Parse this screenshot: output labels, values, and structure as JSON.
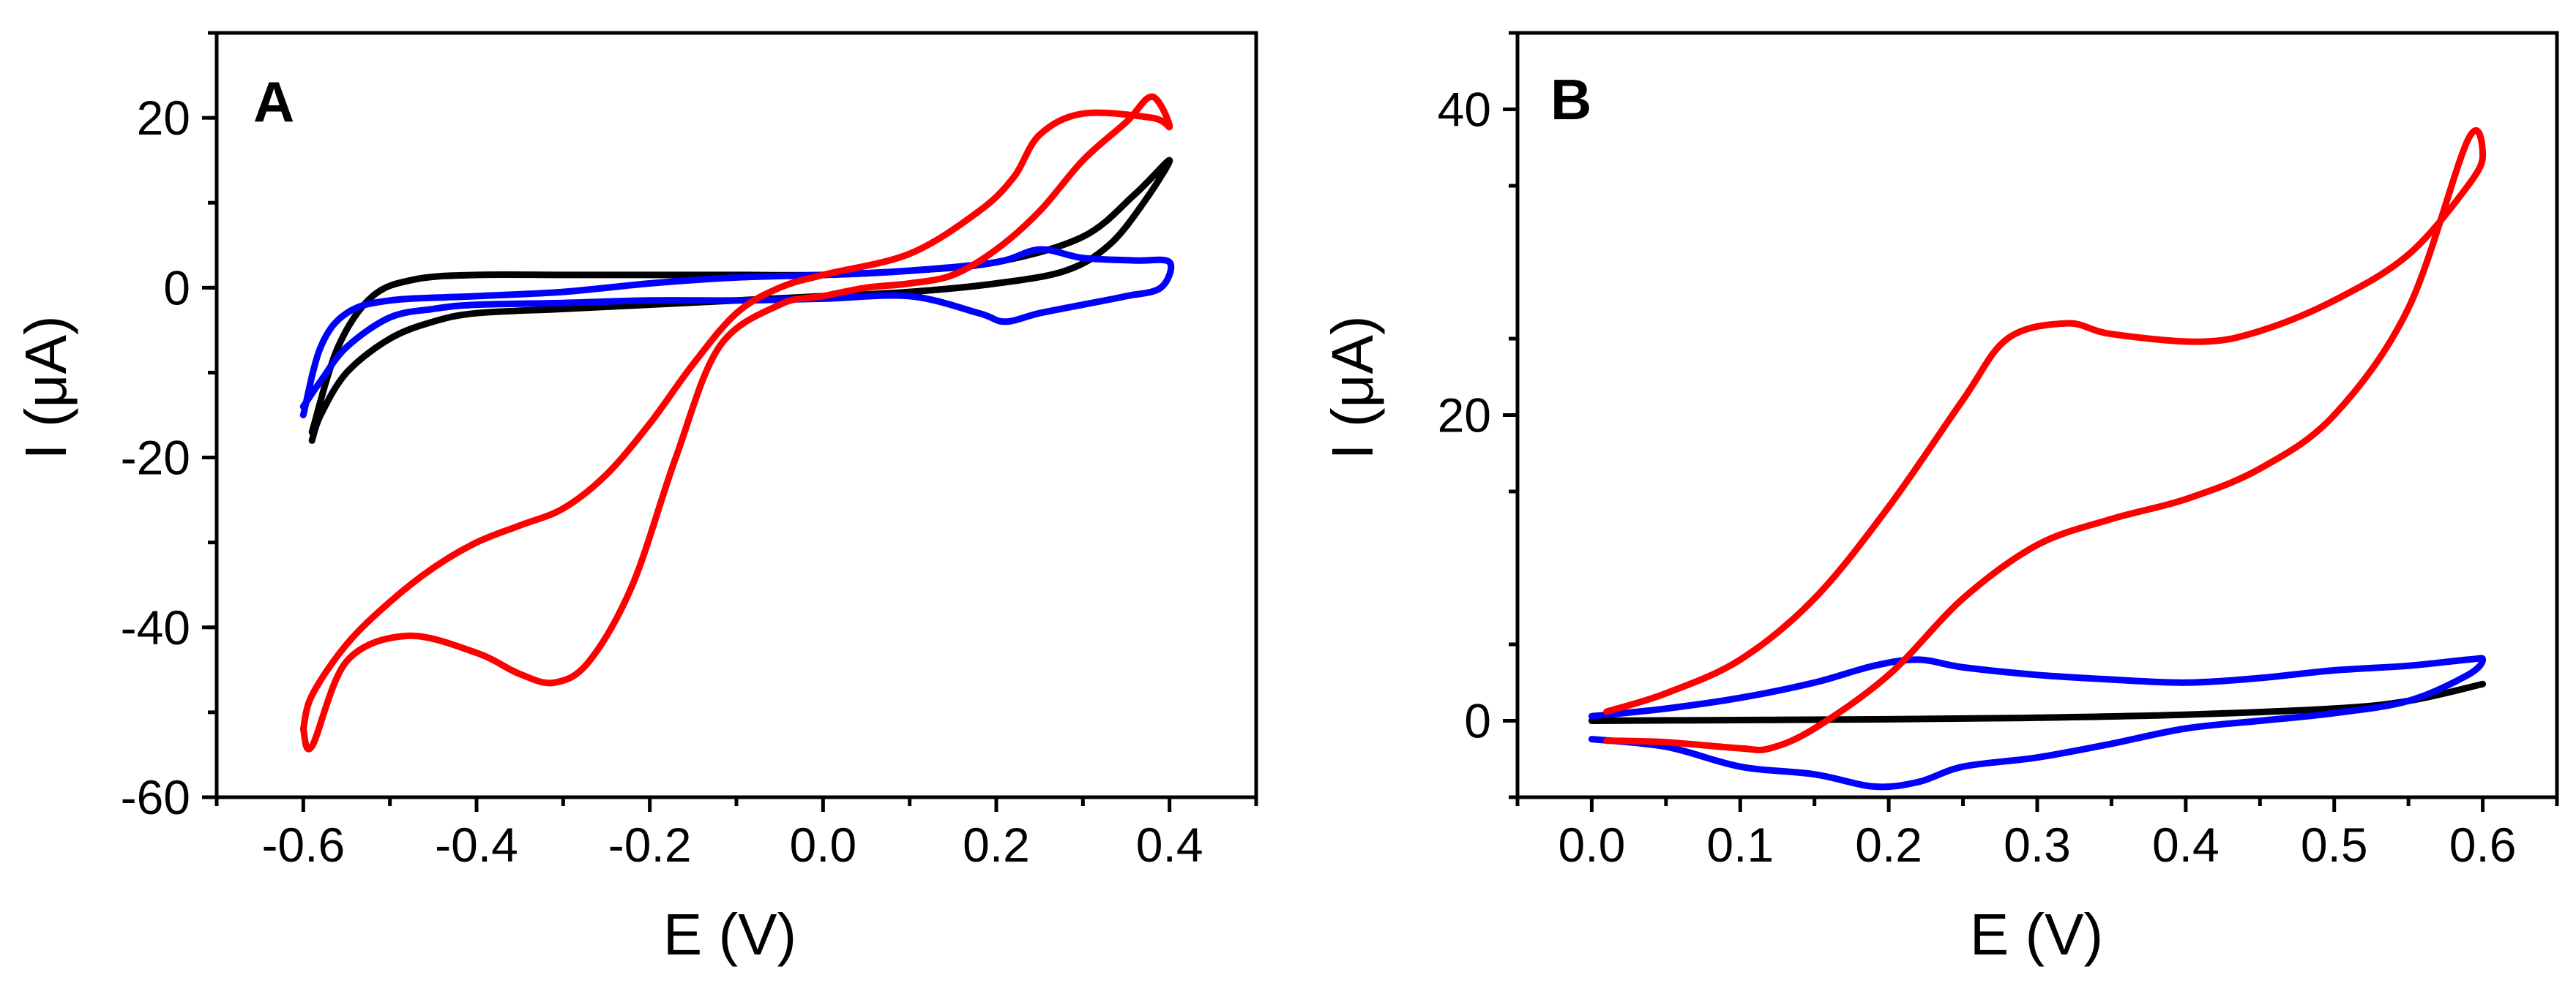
{
  "chart_data": [
    {
      "type": "line",
      "panel": "A",
      "xlabel": "E (V)",
      "ylabel": "I (μA)",
      "xlim": [
        -0.7,
        0.5
      ],
      "ylim": [
        -60,
        30
      ],
      "xticks": [
        -0.6,
        -0.4,
        -0.2,
        0.0,
        0.2,
        0.4
      ],
      "xtick_labels": [
        "-0.6",
        "-0.4",
        "-0.2",
        "0.0",
        "0.2",
        "0.4"
      ],
      "yticks": [
        -60,
        -40,
        -20,
        0,
        20
      ],
      "ytick_labels": [
        "-60",
        "-40",
        "-20",
        "0",
        "20"
      ],
      "series": [
        {
          "name": "black",
          "color": "#000000",
          "x": [
            -0.59,
            -0.58,
            -0.55,
            -0.5,
            -0.45,
            -0.4,
            -0.3,
            -0.2,
            -0.1,
            0.0,
            0.1,
            0.2,
            0.28,
            0.33,
            0.37,
            0.4,
            0.36,
            0.3,
            0.2,
            0.1,
            0.0,
            -0.1,
            -0.2,
            -0.3,
            -0.4,
            -0.47,
            -0.52,
            -0.56,
            -0.59
          ],
          "y": [
            -18,
            -15,
            -10,
            -6,
            -4,
            -3,
            -2.5,
            -2,
            -1.5,
            -1,
            -0.5,
            0.5,
            2,
            5,
            10,
            15,
            11,
            6,
            3,
            2,
            1.5,
            1.5,
            1.5,
            1.5,
            1.5,
            1,
            -1,
            -7,
            -17
          ]
        },
        {
          "name": "blue",
          "color": "#0000ff",
          "x": [
            -0.6,
            -0.58,
            -0.55,
            -0.5,
            -0.45,
            -0.4,
            -0.3,
            -0.2,
            -0.1,
            0.0,
            0.1,
            0.18,
            0.21,
            0.25,
            0.3,
            0.35,
            0.39,
            0.4,
            0.36,
            0.3,
            0.25,
            0.2,
            0.1,
            0.0,
            -0.1,
            -0.2,
            -0.3,
            -0.4,
            -0.5,
            -0.55,
            -0.58,
            -0.6
          ],
          "y": [
            -14,
            -11,
            -7,
            -3.5,
            -2.5,
            -2,
            -1.8,
            -1.5,
            -1.5,
            -1.3,
            -1,
            -3,
            -4,
            -3,
            -2,
            -1,
            0,
            3,
            3.2,
            3.5,
            4.5,
            3,
            2,
            1.5,
            1.2,
            0.5,
            -0.5,
            -1,
            -1.5,
            -3,
            -7,
            -15
          ]
        },
        {
          "name": "red",
          "color": "#ff0000",
          "x": [
            -0.6,
            -0.59,
            -0.55,
            -0.48,
            -0.4,
            -0.35,
            -0.31,
            -0.27,
            -0.22,
            -0.17,
            -0.12,
            -0.05,
            0.0,
            0.05,
            0.1,
            0.15,
            0.2,
            0.25,
            0.3,
            0.35,
            0.38,
            0.4,
            0.38,
            0.3,
            0.25,
            0.22,
            0.18,
            0.1,
            0.0,
            -0.05,
            -0.1,
            -0.15,
            -0.2,
            -0.25,
            -0.3,
            -0.35,
            -0.4,
            -0.45,
            -0.5,
            -0.55,
            -0.59,
            -0.6
          ],
          "y": [
            -52,
            -54,
            -44,
            -41,
            -43,
            -45.5,
            -46.5,
            -44,
            -35,
            -20,
            -7,
            -2,
            -1,
            0,
            0.5,
            1.5,
            4.5,
            9,
            15,
            19.5,
            22.5,
            19,
            20,
            20.5,
            18,
            13,
            9,
            4,
            1.5,
            0,
            -3,
            -9,
            -16,
            -22,
            -26,
            -28,
            -30,
            -33,
            -37,
            -42,
            -48,
            -52
          ]
        }
      ]
    },
    {
      "type": "line",
      "panel": "B",
      "xlabel": "E (V)",
      "ylabel": "I (μA)",
      "xlim": [
        -0.05,
        0.65
      ],
      "ylim": [
        -5,
        45
      ],
      "xticks": [
        0.0,
        0.1,
        0.2,
        0.3,
        0.4,
        0.5,
        0.6
      ],
      "xtick_labels": [
        "0.0",
        "0.1",
        "0.2",
        "0.3",
        "0.4",
        "0.5",
        "0.6"
      ],
      "yticks": [
        0,
        20,
        40
      ],
      "ytick_labels": [
        "0",
        "20",
        "40"
      ],
      "series": [
        {
          "name": "black",
          "color": "#000000",
          "x": [
            0.0,
            0.1,
            0.2,
            0.3,
            0.4,
            0.5,
            0.55,
            0.6
          ],
          "y": [
            0,
            0.05,
            0.1,
            0.2,
            0.4,
            0.8,
            1.3,
            2.4
          ]
        },
        {
          "name": "blue",
          "color": "#0000ff",
          "x": [
            0.0,
            0.05,
            0.1,
            0.15,
            0.19,
            0.22,
            0.25,
            0.3,
            0.35,
            0.4,
            0.45,
            0.5,
            0.55,
            0.59,
            0.6,
            0.59,
            0.55,
            0.5,
            0.45,
            0.4,
            0.35,
            0.3,
            0.25,
            0.22,
            0.19,
            0.15,
            0.1,
            0.05,
            0.0
          ],
          "y": [
            -1.2,
            -1.7,
            -3,
            -3.5,
            -4.3,
            -4,
            -3,
            -2.4,
            -1.5,
            -0.5,
            0,
            0.5,
            1.3,
            3,
            4,
            4,
            3.6,
            3.3,
            2.8,
            2.5,
            2.7,
            3,
            3.5,
            4,
            3.6,
            2.5,
            1.5,
            0.8,
            0.3
          ]
        },
        {
          "name": "red",
          "color": "#ff0000",
          "x": [
            0.01,
            0.05,
            0.1,
            0.12,
            0.15,
            0.2,
            0.25,
            0.3,
            0.35,
            0.4,
            0.45,
            0.5,
            0.55,
            0.59,
            0.6,
            0.59,
            0.55,
            0.5,
            0.45,
            0.41,
            0.35,
            0.32,
            0.28,
            0.25,
            0.2,
            0.15,
            0.1,
            0.05,
            0.01
          ],
          "y": [
            -1.3,
            -1.4,
            -1.8,
            -1.8,
            -0.5,
            3,
            8,
            11.5,
            13.2,
            14.5,
            16.5,
            20,
            27,
            38,
            37,
            35,
            30.5,
            27.5,
            25.5,
            24.8,
            25.3,
            26,
            25,
            21,
            14,
            8,
            4,
            1.8,
            0.6
          ]
        }
      ]
    }
  ]
}
